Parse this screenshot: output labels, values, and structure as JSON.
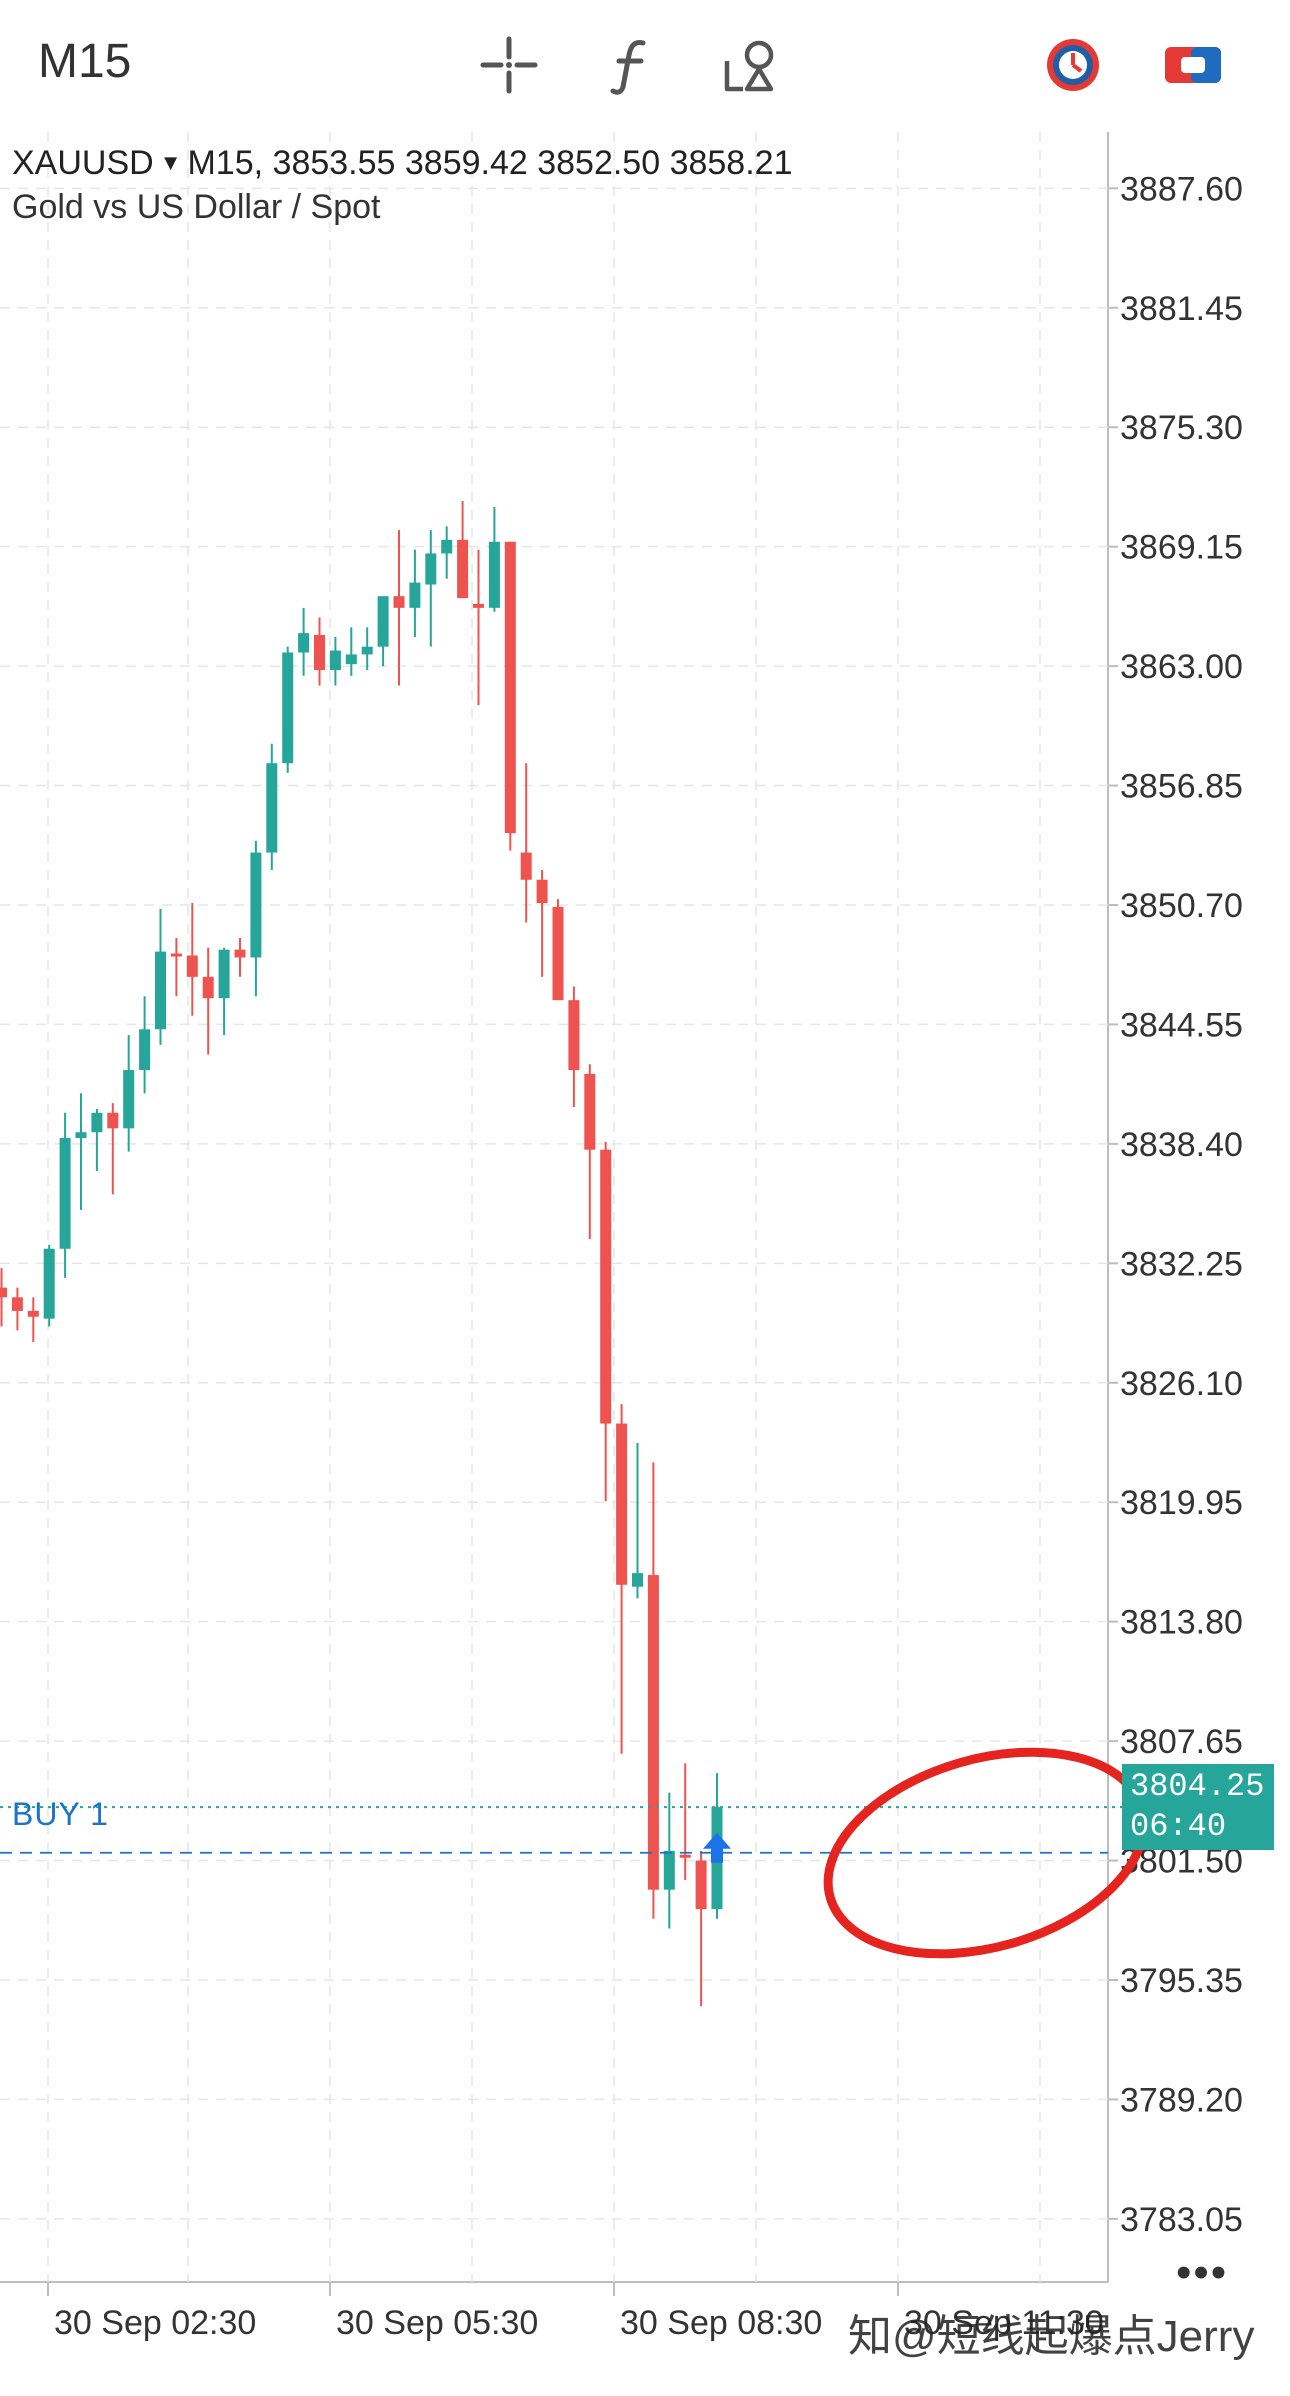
{
  "toolbar": {
    "timeframe": "M15",
    "icons": [
      "crosshair-icon",
      "indicator-f-icon",
      "objects-icon",
      "time-icon",
      "trade-icon"
    ]
  },
  "symbol": {
    "name": "XAUUSD",
    "timeframe": "M15",
    "ohlc": "3853.55 3859.42 3852.50 3858.21",
    "description": "Gold vs US Dollar / Spot"
  },
  "order": {
    "label": "BUY 1"
  },
  "price_tag": {
    "price": "3804.25",
    "countdown": "06:40"
  },
  "more_label": "•••",
  "watermark": "知@短线起爆点Jerry",
  "colors": {
    "bull": "#26a69a",
    "bear": "#ef5350",
    "grid": "#e6e6e6",
    "buy_line": "#1a73c9",
    "bid_line": "#26a69a",
    "highlight": "#e52420"
  },
  "chart_data": {
    "type": "candlestick",
    "symbol": "XAUUSD",
    "timeframe": "M15",
    "yaxis_ticks": [
      "3887.60",
      "3881.45",
      "3875.30",
      "3869.15",
      "3863.00",
      "3856.85",
      "3850.70",
      "3844.55",
      "3838.40",
      "3832.25",
      "3826.10",
      "3819.95",
      "3813.80",
      "3807.65",
      "3801.50",
      "3795.35",
      "3789.20",
      "3783.05"
    ],
    "ylim": [
      3779.8,
      3890.5
    ],
    "xaxis_labels": [
      "30 Sep 02:30",
      "30 Sep 05:30",
      "30 Sep 08:30",
      "30 Sep 11:30"
    ],
    "buy_price": 3801.9,
    "current_price": 3804.25,
    "candles": [
      {
        "o": 3831.0,
        "h": 3832.0,
        "l": 3829.0,
        "c": 3830.5
      },
      {
        "o": 3830.5,
        "h": 3831.0,
        "l": 3828.8,
        "c": 3829.8
      },
      {
        "o": 3829.8,
        "h": 3830.5,
        "l": 3828.2,
        "c": 3829.5
      },
      {
        "o": 3829.4,
        "h": 3833.2,
        "l": 3829.0,
        "c": 3833.0
      },
      {
        "o": 3833.0,
        "h": 3840.0,
        "l": 3831.5,
        "c": 3838.7
      },
      {
        "o": 3838.7,
        "h": 3841.0,
        "l": 3835.0,
        "c": 3839.0
      },
      {
        "o": 3839.0,
        "h": 3840.2,
        "l": 3837.0,
        "c": 3840.0
      },
      {
        "o": 3840.0,
        "h": 3840.5,
        "l": 3835.8,
        "c": 3839.2
      },
      {
        "o": 3839.2,
        "h": 3844.0,
        "l": 3838.0,
        "c": 3842.2
      },
      {
        "o": 3842.2,
        "h": 3846.0,
        "l": 3841.0,
        "c": 3844.3
      },
      {
        "o": 3844.3,
        "h": 3850.5,
        "l": 3843.5,
        "c": 3848.3
      },
      {
        "o": 3848.2,
        "h": 3849.0,
        "l": 3846.0,
        "c": 3848.1
      },
      {
        "o": 3848.1,
        "h": 3850.8,
        "l": 3845.0,
        "c": 3847.0
      },
      {
        "o": 3847.0,
        "h": 3848.5,
        "l": 3843.0,
        "c": 3845.9
      },
      {
        "o": 3845.9,
        "h": 3848.5,
        "l": 3844.0,
        "c": 3848.4
      },
      {
        "o": 3848.4,
        "h": 3849.0,
        "l": 3847.0,
        "c": 3848.0
      },
      {
        "o": 3848.0,
        "h": 3854.0,
        "l": 3846.0,
        "c": 3853.4
      },
      {
        "o": 3853.4,
        "h": 3859.0,
        "l": 3852.5,
        "c": 3858.0
      },
      {
        "o": 3858.0,
        "h": 3864.0,
        "l": 3857.5,
        "c": 3863.7
      },
      {
        "o": 3863.7,
        "h": 3866.0,
        "l": 3862.5,
        "c": 3864.7
      },
      {
        "o": 3864.6,
        "h": 3865.5,
        "l": 3862.0,
        "c": 3862.8
      },
      {
        "o": 3862.8,
        "h": 3864.5,
        "l": 3862.0,
        "c": 3863.8
      },
      {
        "o": 3863.1,
        "h": 3865.0,
        "l": 3862.5,
        "c": 3863.6
      },
      {
        "o": 3863.6,
        "h": 3865.0,
        "l": 3862.8,
        "c": 3864.0
      },
      {
        "o": 3864.0,
        "h": 3866.5,
        "l": 3863.0,
        "c": 3866.6
      },
      {
        "o": 3866.6,
        "h": 3870.0,
        "l": 3862.0,
        "c": 3866.0
      },
      {
        "o": 3866.0,
        "h": 3869.0,
        "l": 3864.5,
        "c": 3867.3
      },
      {
        "o": 3867.2,
        "h": 3870.0,
        "l": 3864.0,
        "c": 3868.8
      },
      {
        "o": 3868.8,
        "h": 3870.2,
        "l": 3867.5,
        "c": 3869.5
      },
      {
        "o": 3869.5,
        "h": 3871.5,
        "l": 3866.5,
        "c": 3866.5
      },
      {
        "o": 3866.2,
        "h": 3869.0,
        "l": 3861.0,
        "c": 3866.0
      },
      {
        "o": 3866.0,
        "h": 3871.2,
        "l": 3865.8,
        "c": 3869.4
      },
      {
        "o": 3869.4,
        "h": 3869.4,
        "l": 3853.5,
        "c": 3854.4
      },
      {
        "o": 3853.4,
        "h": 3858.0,
        "l": 3849.8,
        "c": 3852.0
      },
      {
        "o": 3852.0,
        "h": 3852.5,
        "l": 3847.0,
        "c": 3850.8
      },
      {
        "o": 3850.6,
        "h": 3851.0,
        "l": 3845.8,
        "c": 3845.8
      },
      {
        "o": 3845.8,
        "h": 3846.5,
        "l": 3840.3,
        "c": 3842.2
      },
      {
        "o": 3842.0,
        "h": 3842.5,
        "l": 3833.5,
        "c": 3838.1
      },
      {
        "o": 3838.1,
        "h": 3838.5,
        "l": 3820.0,
        "c": 3824.0
      },
      {
        "o": 3824.0,
        "h": 3825.0,
        "l": 3807.0,
        "c": 3815.7
      },
      {
        "o": 3815.6,
        "h": 3823.0,
        "l": 3815.0,
        "c": 3816.3
      },
      {
        "o": 3816.2,
        "h": 3822.0,
        "l": 3798.5,
        "c": 3800.0
      },
      {
        "o": 3800.0,
        "h": 3805.0,
        "l": 3798.0,
        "c": 3802.0
      },
      {
        "o": 3801.8,
        "h": 3806.5,
        "l": 3800.5,
        "c": 3801.7
      },
      {
        "o": 3801.5,
        "h": 3802.0,
        "l": 3794.0,
        "c": 3799.0
      },
      {
        "o": 3799.0,
        "h": 3806.0,
        "l": 3798.5,
        "c": 3804.25
      }
    ]
  }
}
